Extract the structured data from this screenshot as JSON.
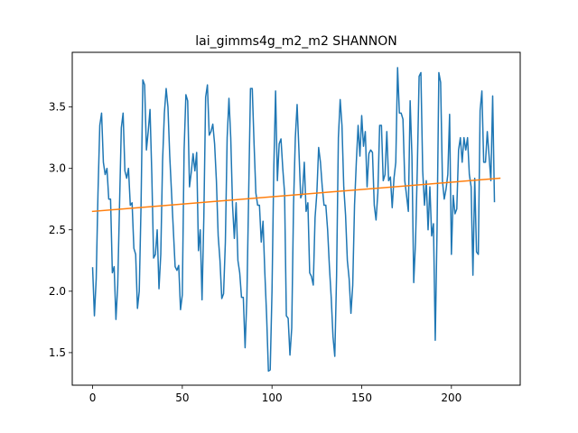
{
  "chart_data": {
    "type": "line",
    "title": "lai_gimms4g_m2_m2 SHANNON",
    "xlabel": "",
    "ylabel": "",
    "xlim": [
      -11.35,
      238.35
    ],
    "ylim": [
      1.235,
      3.945
    ],
    "x_ticks": [
      0,
      50,
      100,
      150,
      200
    ],
    "x_tick_labels": [
      "0",
      "50",
      "100",
      "150",
      "200"
    ],
    "y_ticks": [
      1.5,
      2.0,
      2.5,
      3.0,
      3.5
    ],
    "y_tick_labels": [
      "1.5",
      "2.0",
      "2.5",
      "3.0",
      "3.5"
    ],
    "grid": false,
    "series": [
      {
        "color": "#1f77b4",
        "x_start": 0,
        "x_step": 1,
        "values": [
          2.19,
          1.8,
          2.1,
          2.8,
          3.35,
          3.45,
          3.05,
          2.95,
          3.0,
          2.75,
          2.75,
          2.15,
          2.2,
          1.77,
          2.05,
          2.7,
          3.33,
          3.45,
          2.98,
          2.92,
          3.0,
          2.7,
          2.72,
          2.35,
          2.3,
          1.86,
          2.0,
          2.7,
          3.72,
          3.68,
          3.15,
          3.3,
          3.48,
          2.95,
          2.27,
          2.3,
          2.5,
          2.02,
          2.3,
          3.06,
          3.45,
          3.65,
          3.5,
          3.1,
          2.8,
          2.5,
          2.2,
          2.17,
          2.21,
          1.85,
          1.97,
          3.15,
          3.6,
          3.55,
          2.85,
          2.97,
          3.12,
          2.98,
          3.13,
          2.33,
          2.5,
          1.93,
          2.6,
          3.58,
          3.68,
          3.27,
          3.3,
          3.36,
          3.2,
          2.9,
          2.45,
          2.25,
          1.94,
          1.98,
          2.4,
          3.25,
          3.57,
          3.25,
          2.7,
          2.43,
          2.72,
          2.25,
          2.15,
          1.95,
          1.95,
          1.54,
          1.95,
          2.8,
          3.65,
          3.65,
          3.2,
          2.8,
          2.7,
          2.7,
          2.4,
          2.57,
          2.15,
          1.8,
          1.35,
          1.36,
          2.0,
          3.0,
          3.63,
          2.9,
          3.2,
          3.24,
          3.0,
          2.8,
          1.8,
          1.78,
          1.48,
          1.7,
          2.7,
          3.25,
          3.52,
          3.15,
          2.76,
          2.8,
          3.05,
          2.65,
          2.72,
          2.15,
          2.12,
          2.05,
          2.6,
          2.8,
          3.17,
          3.05,
          2.85,
          2.7,
          2.7,
          2.5,
          2.2,
          1.95,
          1.63,
          1.47,
          2.13,
          3.25,
          3.56,
          3.35,
          2.85,
          2.62,
          2.25,
          2.1,
          1.82,
          2.05,
          2.7,
          3.05,
          3.35,
          3.1,
          3.43,
          3.18,
          3.3,
          2.85,
          3.12,
          3.15,
          3.13,
          2.7,
          2.58,
          2.8,
          3.35,
          3.35,
          2.9,
          2.95,
          3.3,
          2.9,
          2.93,
          2.68,
          2.92,
          3.05,
          3.82,
          3.45,
          3.45,
          3.4,
          2.9,
          2.78,
          2.65,
          3.55,
          3.1,
          2.07,
          2.4,
          3.0,
          3.75,
          3.78,
          2.98,
          2.7,
          2.9,
          2.5,
          2.85,
          2.45,
          2.55,
          1.6,
          2.5,
          3.78,
          3.7,
          2.9,
          2.75,
          2.83,
          2.95,
          3.44,
          2.3,
          2.78,
          2.63,
          2.67,
          3.15,
          3.25,
          3.05,
          3.25,
          3.15,
          3.25,
          2.95,
          2.85,
          2.13,
          2.92,
          2.32,
          2.3,
          3.47,
          3.63,
          3.05,
          3.05,
          3.3,
          3.1,
          2.9,
          3.59,
          2.73
        ]
      },
      {
        "color": "#ff7f0e",
        "x": [
          0,
          227
        ],
        "y": [
          2.65,
          2.92
        ]
      }
    ]
  }
}
